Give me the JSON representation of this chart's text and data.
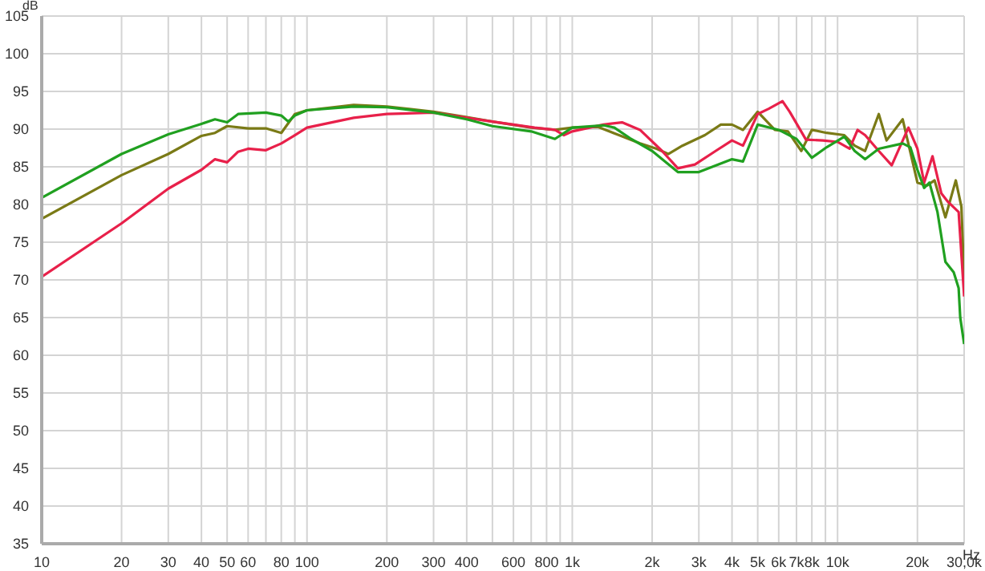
{
  "chart_data": {
    "type": "line",
    "xlabel": "Hz",
    "ylabel": "dB",
    "log": "x",
    "grid": true,
    "legend": false,
    "marker": "none",
    "line_style": "solid",
    "xlim": [
      10,
      30000
    ],
    "ylim": [
      35,
      105
    ],
    "xticks": [
      10,
      20,
      30,
      40,
      50,
      60,
      {
        "value": 70,
        "label": null
      },
      80,
      {
        "value": 90,
        "label": null
      },
      100,
      200,
      300,
      400,
      {
        "value": 500,
        "label": null
      },
      600,
      {
        "value": 700,
        "label": null
      },
      800,
      {
        "value": 900,
        "label": null
      },
      {
        "value": 1000,
        "label": "1k"
      },
      {
        "value": 2000,
        "label": "2k"
      },
      {
        "value": 3000,
        "label": "3k"
      },
      {
        "value": 4000,
        "label": "4k"
      },
      {
        "value": 5000,
        "label": "5k"
      },
      {
        "value": 6000,
        "label": "6k"
      },
      {
        "value": 7000,
        "label": "7k"
      },
      {
        "value": 8000,
        "label": "8k"
      },
      {
        "value": 9000,
        "label": null
      },
      {
        "value": 10000,
        "label": "10k"
      },
      {
        "value": 20000,
        "label": "20k"
      },
      {
        "value": 30000,
        "label": "30,0k"
      }
    ],
    "yticks": [
      35,
      40,
      45,
      50,
      55,
      60,
      65,
      70,
      75,
      80,
      85,
      90,
      95,
      100,
      105
    ],
    "series": [
      {
        "color": "#7a7a16",
        "x": [
          10,
          20,
          30,
          40,
          45,
          50,
          60,
          70,
          80,
          90,
          100,
          150,
          200,
          300,
          400,
          500,
          700,
          860,
          1000,
          1250,
          1500,
          1800,
          2080,
          2300,
          2600,
          3160,
          3630,
          4000,
          4400,
          5000,
          5800,
          6500,
          7300,
          8000,
          9100,
          10600,
          11600,
          12700,
          14300,
          15300,
          17600,
          20000,
          21700,
          23200,
          25500,
          27900,
          29300,
          30000
        ],
        "values": [
          78.1,
          83.9,
          86.7,
          89.1,
          89.5,
          90.4,
          90.1,
          90.1,
          89.5,
          92,
          92.5,
          93.2,
          93,
          92.3,
          91.6,
          91,
          90.2,
          89.9,
          90.2,
          90.3,
          89.2,
          88.1,
          87.4,
          86.7,
          87.8,
          89.2,
          90.6,
          90.6,
          89.9,
          92.3,
          89.9,
          89.7,
          87.1,
          89.9,
          89.5,
          89.2,
          87.8,
          87.1,
          92,
          88.5,
          91.3,
          82.9,
          82.5,
          83.2,
          78.3,
          83.2,
          79.7,
          70
        ]
      },
      {
        "color": "#e8204a",
        "x": [
          10,
          20,
          30,
          40,
          45,
          50,
          55,
          60,
          70,
          80,
          90,
          100,
          150,
          200,
          300,
          400,
          500,
          720,
          860,
          930,
          1000,
          1310,
          1540,
          1800,
          2180,
          2500,
          2900,
          3470,
          4000,
          4400,
          5000,
          5500,
          6200,
          6600,
          7600,
          8800,
          10000,
          11100,
          11900,
          12700,
          14300,
          16000,
          18500,
          20000,
          21200,
          22800,
          24600,
          26000,
          28600,
          30000
        ],
        "values": [
          70.4,
          77.5,
          82.1,
          84.6,
          86,
          85.6,
          87,
          87.4,
          87.2,
          88.1,
          89.2,
          90.2,
          91.5,
          92,
          92.2,
          91.5,
          91,
          90.2,
          89.9,
          89.2,
          89.7,
          90.6,
          90.9,
          89.9,
          87.1,
          84.8,
          85.3,
          87.1,
          88.5,
          87.8,
          92,
          92.7,
          93.7,
          92.3,
          88.6,
          88.5,
          88.3,
          87.4,
          89.9,
          89.2,
          87.1,
          85.2,
          90.2,
          87.4,
          82.9,
          86.4,
          81.5,
          80.4,
          79,
          67.8
        ]
      },
      {
        "color": "#20a020",
        "x": [
          10,
          20,
          30,
          40,
          45,
          50,
          55,
          70,
          80,
          85,
          90,
          100,
          150,
          200,
          300,
          400,
          500,
          700,
          860,
          1000,
          1310,
          1440,
          1650,
          2000,
          2500,
          3000,
          4000,
          4400,
          5000,
          6000,
          7000,
          8000,
          9100,
          10600,
          11600,
          12700,
          14300,
          17600,
          18800,
          20000,
          21200,
          22200,
          23800,
          25500,
          27400,
          28600,
          29000,
          30000
        ],
        "values": [
          80.9,
          86.7,
          89.3,
          90.7,
          91.3,
          90.9,
          92,
          92.2,
          91.8,
          91,
          91.8,
          92.5,
          93,
          92.9,
          92.2,
          91.3,
          90.4,
          89.7,
          88.7,
          90.2,
          90.5,
          90.2,
          88.8,
          87.1,
          84.3,
          84.3,
          86,
          85.7,
          90.6,
          89.9,
          88.7,
          86.2,
          87.6,
          89,
          87.1,
          86,
          87.4,
          88.1,
          87.6,
          84.6,
          82.2,
          82.9,
          79,
          72.4,
          71,
          68.9,
          65,
          61.5
        ]
      }
    ]
  }
}
